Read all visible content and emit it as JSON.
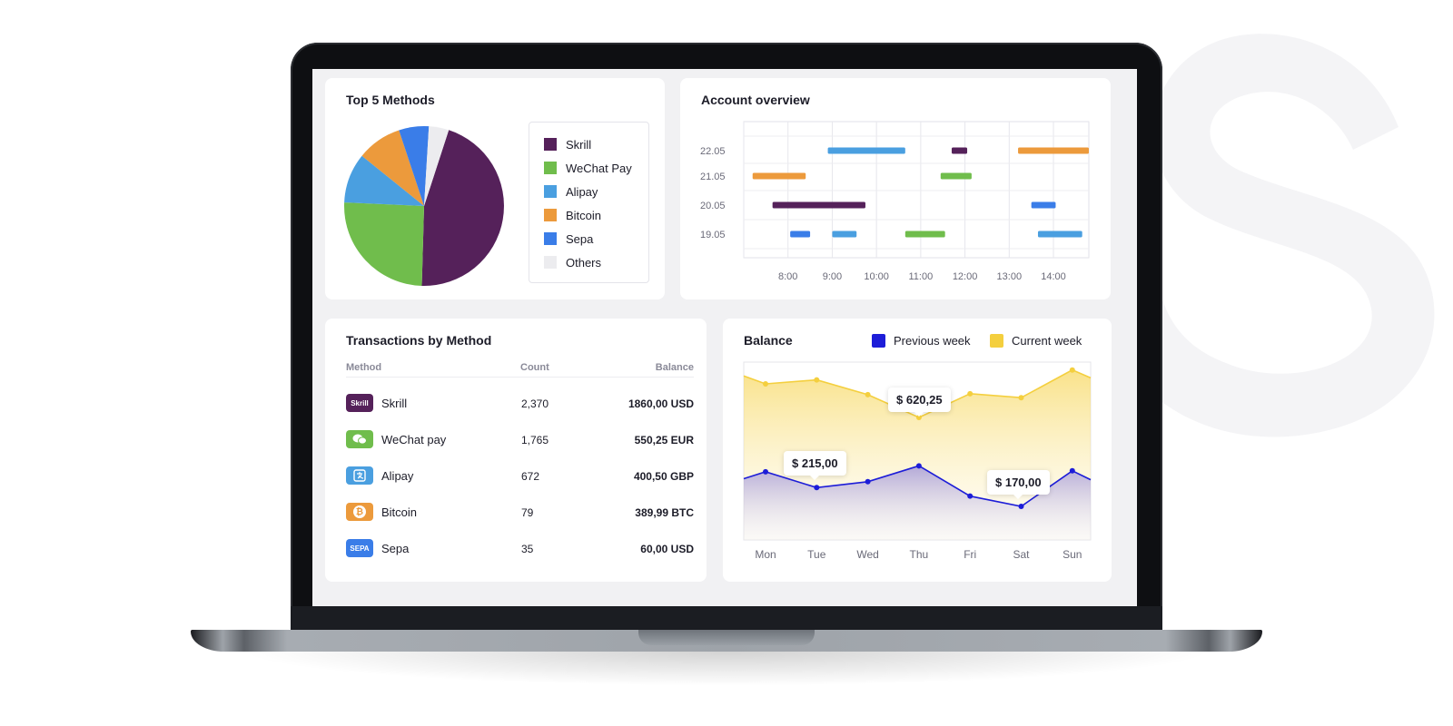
{
  "colors": {
    "skrill": "#55215a",
    "wechat": "#70bd4c",
    "alipay": "#4a9fe0",
    "bitcoin": "#ec9a3c",
    "sepa": "#3a7de8",
    "others": "#ececef",
    "previous_week": "#1d1dd8",
    "current_week": "#f4cf3e"
  },
  "top_methods": {
    "title": "Top 5 Methods",
    "legend": [
      {
        "label": "Skrill",
        "color": "#55215a"
      },
      {
        "label": "WeChat Pay",
        "color": "#70bd4c"
      },
      {
        "label": "Alipay",
        "color": "#4a9fe0"
      },
      {
        "label": "Bitcoin",
        "color": "#ec9a3c"
      },
      {
        "label": "Sepa",
        "color": "#3a7de8"
      },
      {
        "label": "Others",
        "color": "#ececef"
      }
    ]
  },
  "account_overview": {
    "title": "Account overview",
    "y_labels": [
      "22.05",
      "21.05",
      "20.05",
      "19.05"
    ],
    "x_labels": [
      "8:00",
      "9:00",
      "10:00",
      "11:00",
      "12:00",
      "13:00",
      "14:00"
    ]
  },
  "transactions": {
    "title": "Transactions by Method",
    "headers": {
      "method": "Method",
      "count": "Count",
      "balance": "Balance"
    },
    "rows": [
      {
        "icon": "skrill-icon",
        "icon_text": "Skrill",
        "name": "Skrill",
        "count": "2,370",
        "balance": "1860,00 USD",
        "color": "#55215a"
      },
      {
        "icon": "wechat-icon",
        "icon_text": "",
        "name": "WeChat pay",
        "count": "1,765",
        "balance": "550,25 EUR",
        "color": "#70bd4c"
      },
      {
        "icon": "alipay-icon",
        "icon_text": "",
        "name": "Alipay",
        "count": "672",
        "balance": "400,50 GBP",
        "color": "#4a9fe0"
      },
      {
        "icon": "bitcoin-icon",
        "icon_text": "₿",
        "name": "Bitcoin",
        "count": "79",
        "balance": "389,99 BTC",
        "color": "#ec9a3c"
      },
      {
        "icon": "sepa-icon",
        "icon_text": "SEPA",
        "name": "Sepa",
        "count": "35",
        "balance": "60,00 USD",
        "color": "#3a7de8"
      }
    ]
  },
  "balance": {
    "title": "Balance",
    "legend": {
      "previous": "Previous week",
      "current": "Current week"
    },
    "days": [
      "Mon",
      "Tue",
      "Wed",
      "Thu",
      "Fri",
      "Sat",
      "Sun"
    ],
    "tooltips": [
      "$ 620,25",
      "$ 215,00",
      "$ 170,00"
    ]
  },
  "chart_data": [
    {
      "type": "pie",
      "title": "Top 5 Methods",
      "categories": [
        "Skrill",
        "WeChat Pay",
        "Alipay",
        "Bitcoin",
        "Sepa",
        "Others"
      ],
      "values": [
        45,
        25,
        10,
        9,
        6,
        4
      ]
    },
    {
      "type": "table",
      "title": "Account overview",
      "y_categories": [
        "22.05",
        "21.05",
        "20.05",
        "19.05"
      ],
      "x_ticks": [
        "8:00",
        "9:00",
        "10:00",
        "11:00",
        "12:00",
        "13:00",
        "14:00"
      ],
      "x_range": [
        7.0,
        14.8
      ],
      "grid": true,
      "intervals": [
        {
          "row": "22.05",
          "method": "Alipay",
          "start": 8.9,
          "end": 10.65
        },
        {
          "row": "22.05",
          "method": "Skrill",
          "start": 11.7,
          "end": 12.05
        },
        {
          "row": "22.05",
          "method": "Bitcoin",
          "start": 13.2,
          "end": 14.8
        },
        {
          "row": "21.05",
          "method": "Bitcoin",
          "start": 7.2,
          "end": 8.4
        },
        {
          "row": "21.05",
          "method": "WeChat Pay",
          "start": 11.45,
          "end": 12.15
        },
        {
          "row": "20.05",
          "method": "Skrill",
          "start": 7.65,
          "end": 9.75
        },
        {
          "row": "20.05",
          "method": "Sepa",
          "start": 13.5,
          "end": 14.05
        },
        {
          "row": "19.05",
          "method": "Sepa",
          "start": 8.05,
          "end": 8.5
        },
        {
          "row": "19.05",
          "method": "Alipay",
          "start": 9.0,
          "end": 9.55
        },
        {
          "row": "19.05",
          "method": "WeChat Pay",
          "start": 10.65,
          "end": 11.55
        },
        {
          "row": "19.05",
          "method": "Alipay",
          "start": 13.65,
          "end": 14.65
        }
      ]
    },
    {
      "type": "area",
      "title": "Balance",
      "categories": [
        "Mon",
        "Tue",
        "Wed",
        "Thu",
        "Fri",
        "Sat",
        "Sun"
      ],
      "ylim": [
        0,
        900
      ],
      "series": [
        {
          "name": "Current week",
          "values": [
            790,
            810,
            735,
            620,
            740,
            720,
            860
          ],
          "start": 830,
          "end": 820
        },
        {
          "name": "Previous week",
          "values": [
            345,
            265,
            295,
            375,
            222,
            170,
            350
          ],
          "start": 310,
          "end": 305
        }
      ]
    }
  ]
}
